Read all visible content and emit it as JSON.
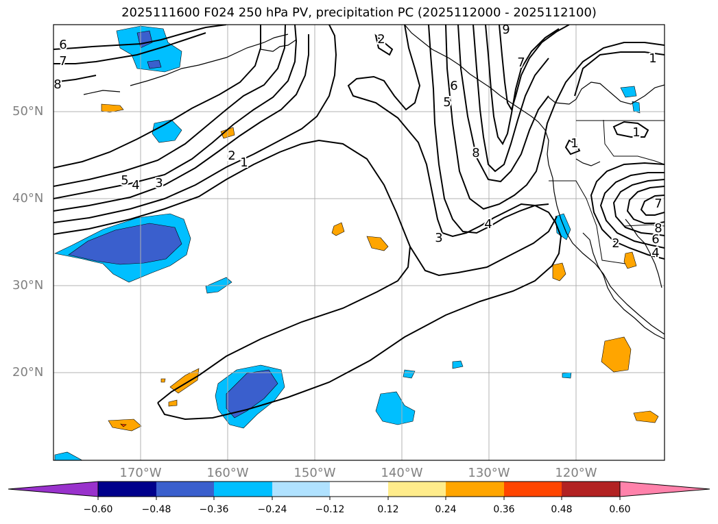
{
  "title": "2025111600 F024 250 hPa PV, precipitation PC (2025112000 - 2025112100)",
  "lat_labels": [
    "50°N",
    "40°N",
    "30°N",
    "20°N"
  ],
  "lon_labels": [
    "170°W",
    "160°W",
    "150°W",
    "140°W",
    "130°W",
    "120°W"
  ],
  "colorbar": {
    "levels": [
      "-0.60",
      "-0.48",
      "-0.36",
      "-0.24",
      "-0.12",
      "0.12",
      "0.24",
      "0.36",
      "0.48",
      "0.60"
    ],
    "colors": [
      "#9932cc",
      "#00008b",
      "#3a5fcd",
      "#00bfff",
      "#b0e2ff",
      "#ffffff",
      "#ffec8b",
      "#ffa500",
      "#ff4500",
      "#b22222",
      "#ff82ab"
    ]
  },
  "contour_labels": [
    "6",
    "7",
    "8",
    "5",
    "4",
    "3",
    "2",
    "1",
    "2",
    "9",
    "7",
    "6",
    "5",
    "8",
    "4",
    "3",
    "1",
    "1",
    "1",
    "7",
    "8",
    "6",
    "4",
    "2"
  ]
}
